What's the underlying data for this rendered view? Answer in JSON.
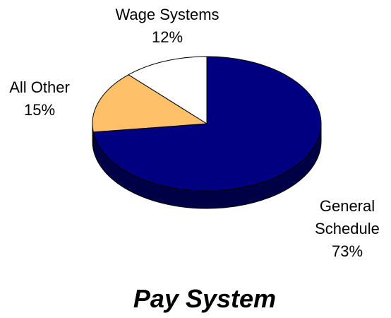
{
  "chart_data": {
    "type": "pie",
    "title": "Pay System",
    "categories": [
      "General Schedule",
      "All Other",
      "Wage Systems"
    ],
    "values": [
      73,
      15,
      12
    ],
    "value_labels": [
      "73%",
      "15%",
      "12%"
    ],
    "colors": [
      "#000080",
      "#ffc06a",
      "#ffffff"
    ]
  }
}
